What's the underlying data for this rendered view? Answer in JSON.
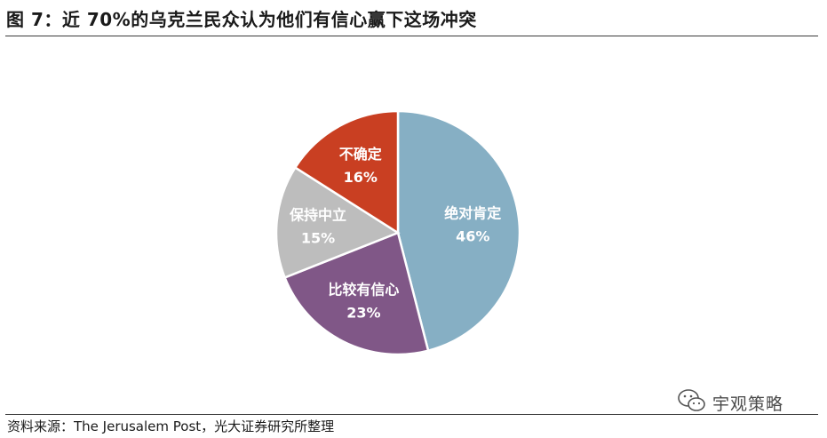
{
  "header": {
    "title": "图 7：近 70%的乌克兰民众认为他们有信心赢下这场冲突"
  },
  "footer": {
    "source": "资料来源：The Jerusalem Post，光大证券研究所整理",
    "watermark": "宇观策略"
  },
  "chart_data": {
    "type": "pie",
    "title": "",
    "slices": [
      {
        "label": "绝对肯定",
        "value": 46,
        "value_label": "46%",
        "color": "#86AFC4"
      },
      {
        "label": "比较有信心",
        "value": 23,
        "value_label": "23%",
        "color": "#805787"
      },
      {
        "label": "保持中立",
        "value": 15,
        "value_label": "15%",
        "color": "#BDBDBD"
      },
      {
        "label": "不确定",
        "value": 16,
        "value_label": "16%",
        "color": "#C93F22"
      }
    ],
    "start": "12 o'clock",
    "direction": "clockwise",
    "slice_border_color": "#ffffff"
  }
}
